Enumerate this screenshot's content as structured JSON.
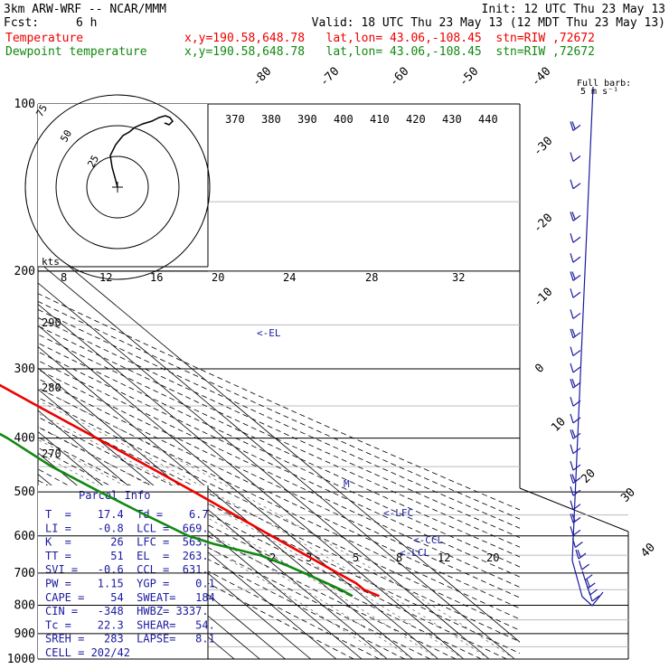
{
  "header": {
    "model": "3km ARW-WRF -- NCAR/MMM",
    "init": "Init: 12 UTC Thu 23 May 13",
    "fcst_label": "Fcst:",
    "fcst_value": "6 h",
    "valid": "Valid: 18 UTC Thu 23 May 13 (12 MDT Thu 23 May 13)",
    "temp_label": "Temperature",
    "temp_info": "x,y=190.58,648.78   lat,lon= 43.06,-108.45  stn=RIW ,72672",
    "dew_label": "Dewpoint temperature",
    "dew_info": "x,y=190.58,648.78   lat,lon= 43.06,-108.45  stn=RIW ,72672",
    "barb_note": "Full barb:",
    "barb_unit": "5 m s⁻¹"
  },
  "colors": {
    "temperature": "#ee0000",
    "dewpoint": "#118811",
    "wind": "#1a1aa0",
    "info": "#1a1aa0"
  },
  "chart_data": {
    "type": "line",
    "pressure_levels": [
      100,
      200,
      300,
      400,
      500,
      600,
      700,
      800,
      900,
      1000
    ],
    "pressure_labels": [
      "100",
      "200",
      "300",
      "400",
      "500",
      "600",
      "700",
      "800",
      "900",
      "1000"
    ],
    "isotherm_labels": [
      "-80",
      "-70",
      "-60",
      "-50",
      "-40",
      "-30",
      "-20",
      "-10",
      "0",
      "10",
      "20",
      "30",
      "40"
    ],
    "theta_labels": [
      "370",
      "380",
      "390",
      "400",
      "410",
      "420",
      "430",
      "440"
    ],
    "mixing_ratio_labels_upper": [
      "8",
      "12",
      "16",
      "20",
      "24",
      "28",
      "32"
    ],
    "mixing_ratio_labels_lower": [
      "2",
      "3",
      "5",
      "8",
      "12",
      "20"
    ],
    "left_theta_labels": [
      "290",
      "280",
      "270"
    ],
    "series": [
      {
        "name": "Temperature",
        "p": [
          100,
          130,
          150,
          170,
          190,
          200,
          220,
          250,
          300,
          350,
          400,
          450,
          500,
          550,
          600,
          650,
          700,
          730,
          750,
          770
        ],
        "t": [
          -59,
          -59,
          -56,
          -55,
          -58,
          -57,
          -52,
          -46,
          -37,
          -28,
          -20,
          -13,
          -7,
          -2,
          2.5,
          7,
          11,
          13.5,
          13.5,
          16.5
        ]
      },
      {
        "name": "Dewpoint temperature",
        "p": [
          100,
          130,
          170,
          200,
          250,
          300,
          350,
          380,
          400,
          450,
          500,
          550,
          600,
          620,
          650,
          680,
          700,
          730,
          750,
          770
        ],
        "t": [
          -75,
          -80,
          -82,
          -84,
          -81,
          -76,
          -66,
          -58,
          -55,
          -51,
          -44,
          -37,
          -30,
          -24,
          -11,
          -5,
          -2,
          2,
          4.5,
          6
        ]
      }
    ],
    "wind_levels": [
      110,
      125,
      140,
      160,
      175,
      190,
      205,
      220,
      240,
      260,
      280,
      300,
      320,
      345,
      370,
      395,
      420,
      450,
      475,
      500,
      530,
      560,
      590,
      620,
      650,
      680,
      710,
      735,
      755,
      775
    ],
    "markers": [
      "<-EL",
      "<-LFC",
      "<-CCL",
      "<-LCL",
      "M"
    ],
    "hodograph": {
      "rings": [
        "25",
        "50",
        "75"
      ],
      "units": "kts"
    },
    "parcel_info": {
      "title": "Parcel Info",
      "rows": [
        "T  =    17.4  Td =    6.7",
        "LI =    -0.8  LCL =  669.",
        "K  =      26  LFC =  563.",
        "TT =      51  EL  =  263.",
        "SVI =   -0.6  CCL =  631.",
        "PW =    1.15  YGP =    0.1",
        "CAPE =    54  SWEAT=   184",
        "CIN =   -348  HWBZ= 3337.",
        "Tc =    22.3  SHEAR=   54.",
        "SREH =   283  LAPSE=   8.1",
        "CELL = 202/42"
      ]
    }
  }
}
